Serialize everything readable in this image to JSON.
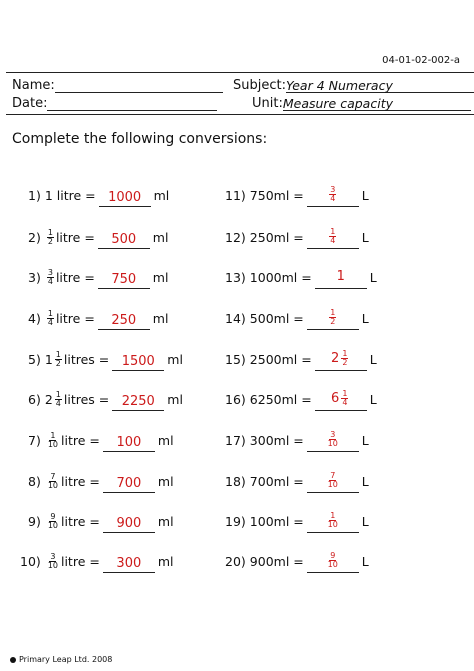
{
  "doc_code": "04-01-02-002-a",
  "header": {
    "name_label": "Name:",
    "date_label": "Date:",
    "subject_label": "Subject:",
    "subject_value": "Year 4 Numeracy",
    "unit_label": "Unit:",
    "unit_value": "Measure capacity"
  },
  "instruction": "Complete the following conversions:",
  "left": [
    {
      "n": "1)",
      "pre": "1 litre =",
      "frac": null,
      "ans": "1000",
      "unit": "ml"
    },
    {
      "n": "2)",
      "pre": "litre =",
      "frac": {
        "w": "",
        "num": "1",
        "den": "2"
      },
      "ans": "500",
      "unit": "ml"
    },
    {
      "n": "3)",
      "pre": "litre =",
      "frac": {
        "w": "",
        "num": "3",
        "den": "4"
      },
      "ans": "750",
      "unit": "ml"
    },
    {
      "n": "4)",
      "pre": "litre =",
      "frac": {
        "w": "",
        "num": "1",
        "den": "4"
      },
      "ans": "250",
      "unit": "ml"
    },
    {
      "n": "5)",
      "pre": "litres =",
      "frac": {
        "w": "1",
        "num": "1",
        "den": "2"
      },
      "ans": "1500",
      "unit": "ml"
    },
    {
      "n": "6)",
      "pre": "litres =",
      "frac": {
        "w": "2",
        "num": "1",
        "den": "4"
      },
      "ans": "2250",
      "unit": "ml"
    },
    {
      "n": "7)",
      "pre": "litre =",
      "frac": {
        "w": "",
        "num": "1",
        "den": "10"
      },
      "ans": "100",
      "unit": "ml"
    },
    {
      "n": "8)",
      "pre": "litre =",
      "frac": {
        "w": "",
        "num": "7",
        "den": "10"
      },
      "ans": "700",
      "unit": "ml"
    },
    {
      "n": "9)",
      "pre": "litre =",
      "frac": {
        "w": "",
        "num": "9",
        "den": "10"
      },
      "ans": "900",
      "unit": "ml"
    },
    {
      "n": "10)",
      "pre": "litre =",
      "frac": {
        "w": "",
        "num": "3",
        "den": "10"
      },
      "ans": "300",
      "unit": "ml"
    }
  ],
  "right": [
    {
      "n": "11)",
      "pre": "750ml =",
      "ans": {
        "w": "",
        "num": "3",
        "den": "4"
      },
      "unit": "L"
    },
    {
      "n": "12)",
      "pre": "250ml =",
      "ans": {
        "w": "",
        "num": "1",
        "den": "4"
      },
      "unit": "L"
    },
    {
      "n": "13)",
      "pre": "1000ml =",
      "ans": {
        "w": "1",
        "num": "",
        "den": ""
      },
      "unit": "L"
    },
    {
      "n": "14)",
      "pre": "500ml =",
      "ans": {
        "w": "",
        "num": "1",
        "den": "2"
      },
      "unit": "L"
    },
    {
      "n": "15)",
      "pre": "2500ml =",
      "ans": {
        "w": "2",
        "num": "1",
        "den": "2"
      },
      "unit": "L"
    },
    {
      "n": "16)",
      "pre": "6250ml =",
      "ans": {
        "w": "6",
        "num": "1",
        "den": "4"
      },
      "unit": "L"
    },
    {
      "n": "17)",
      "pre": "300ml =",
      "ans": {
        "w": "",
        "num": "3",
        "den": "10"
      },
      "unit": "L"
    },
    {
      "n": "18)",
      "pre": "700ml =",
      "ans": {
        "w": "",
        "num": "7",
        "den": "10"
      },
      "unit": "L"
    },
    {
      "n": "19)",
      "pre": "100ml =",
      "ans": {
        "w": "",
        "num": "1",
        "den": "10"
      },
      "unit": "L"
    },
    {
      "n": "20)",
      "pre": "900ml =",
      "ans": {
        "w": "",
        "num": "9",
        "den": "10"
      },
      "unit": "L"
    }
  ],
  "footer": "Primary Leap Ltd. 2008",
  "colors": {
    "answer": "#cc1a1a"
  }
}
